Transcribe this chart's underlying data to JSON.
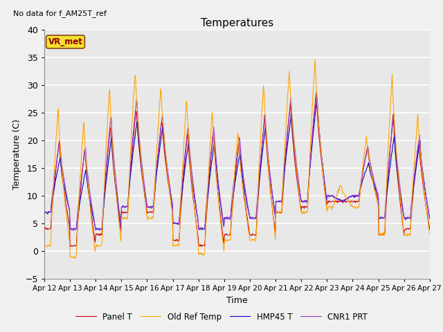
{
  "title": "Temperatures",
  "xlabel": "Time",
  "ylabel": "Temperature (C)",
  "ylim": [
    -5,
    40
  ],
  "note_text": "No data for f_AM25T_ref",
  "annotation": "VR_met",
  "bg_color": "#f0f0f0",
  "plot_bg": "#e8e8e8",
  "grid_color": "white",
  "xtick_labels": [
    "Apr 12",
    "Apr 13",
    "Apr 14",
    "Apr 15",
    "Apr 16",
    "Apr 17",
    "Apr 18",
    "Apr 19",
    "Apr 20",
    "Apr 21",
    "Apr 22",
    "Apr 23",
    "Apr 24",
    "Apr 25",
    "Apr 26",
    "Apr 27"
  ],
  "lines": {
    "Panel T": {
      "color": "#cc0000",
      "lw": 0.8
    },
    "Old Ref Temp": {
      "color": "#ffa500",
      "lw": 0.8
    },
    "HMP45 T": {
      "color": "#0000cc",
      "lw": 0.8
    },
    "CNR1 PRT": {
      "color": "#9933cc",
      "lw": 0.8
    }
  },
  "orange_peaks": [
    26,
    24,
    30,
    33,
    30,
    28,
    26,
    22,
    31,
    33,
    35,
    12,
    21,
    32,
    25
  ],
  "red_peaks": [
    20,
    19,
    23,
    26,
    24,
    22,
    22,
    20,
    25,
    27,
    29,
    9,
    19,
    25,
    20
  ],
  "blue_peaks": [
    17,
    15,
    21,
    24,
    23,
    20,
    20,
    18,
    23,
    25,
    28,
    9,
    16,
    21,
    20
  ],
  "purple_peaks": [
    20,
    19,
    25,
    28,
    25,
    23,
    23,
    21,
    25,
    28,
    29,
    9,
    19,
    25,
    21
  ],
  "orange_mins": [
    1,
    -1,
    1,
    6,
    6,
    1,
    -0.5,
    2,
    2,
    7,
    7,
    8,
    8,
    3,
    3
  ],
  "red_mins": [
    4,
    1,
    3,
    7,
    7,
    2,
    1,
    3,
    3,
    7,
    8,
    9,
    9,
    3,
    4
  ],
  "blue_mins": [
    7,
    4,
    4,
    8,
    8,
    5,
    4,
    6,
    6,
    9,
    9,
    10,
    10,
    6,
    6
  ],
  "purple_mins": [
    7,
    4,
    4,
    8,
    8,
    5,
    4,
    6,
    6,
    9,
    9,
    10,
    10,
    6,
    6
  ]
}
